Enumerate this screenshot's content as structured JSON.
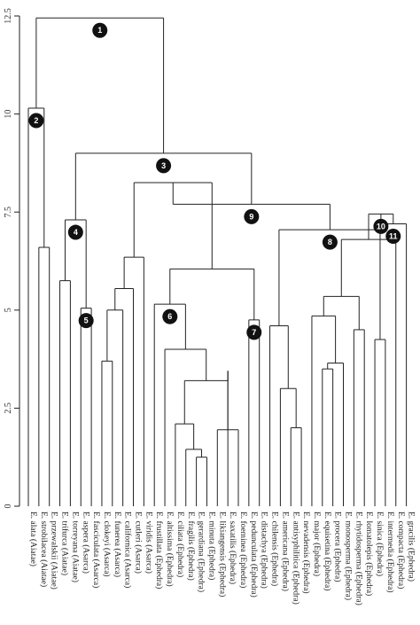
{
  "chart_data": {
    "type": "dendrogram",
    "axis": {
      "ticks": [
        "0",
        "2.5",
        "5",
        "7.5",
        "10",
        "12.5"
      ],
      "ylim": [
        0,
        12.5
      ]
    },
    "nodes": [
      {
        "id": "n0",
        "h": 12.45
      },
      {
        "id": "n1",
        "h": 10.15
      },
      {
        "id": "n2",
        "h": 9.0
      },
      {
        "id": "n3",
        "h": 6.6
      },
      {
        "id": "n4",
        "h": 5.3
      },
      {
        "id": "n5",
        "h": 3.6
      },
      {
        "id": "n6",
        "h": 7.3
      },
      {
        "id": "n7",
        "h": 5.75
      },
      {
        "id": "n8",
        "h": 5.05
      },
      {
        "id": "n9",
        "h": 8.25
      },
      {
        "id": "n10",
        "h": 6.35
      },
      {
        "id": "n11",
        "h": 6.05
      },
      {
        "id": "n12",
        "h": 5.55
      },
      {
        "id": "n13",
        "h": 5.0
      },
      {
        "id": "n14",
        "h": 3.7
      },
      {
        "id": "n15",
        "h": 3.45
      },
      {
        "id": "n16",
        "h": 3.2
      },
      {
        "id": "n17",
        "h": 2.1
      },
      {
        "id": "n18",
        "h": 1.95
      },
      {
        "id": "n19",
        "h": 1.45
      },
      {
        "id": "n20",
        "h": 1.25
      },
      {
        "id": "n21",
        "h": 5.15
      },
      {
        "id": "n22",
        "h": 4.0
      },
      {
        "id": "n23",
        "h": 4.75
      },
      {
        "id": "n24",
        "h": 7.7
      },
      {
        "id": "n25",
        "h": 7.05
      },
      {
        "id": "n26",
        "h": 4.6
      },
      {
        "id": "n27",
        "h": 3.0
      },
      {
        "id": "n28",
        "h": 2.0
      },
      {
        "id": "n29",
        "h": 7.45
      },
      {
        "id": "n30",
        "h": 6.8
      },
      {
        "id": "n31",
        "h": 5.35
      },
      {
        "id": "n32",
        "h": 4.85
      },
      {
        "id": "n33",
        "h": 3.65
      },
      {
        "id": "n34",
        "h": 3.5
      },
      {
        "id": "n35",
        "h": 4.5
      },
      {
        "id": "n36",
        "h": 7.2
      },
      {
        "id": "n37",
        "h": 4.25
      },
      {
        "id": "n38",
        "h": 3.3
      }
    ],
    "edges": [
      [
        "n0",
        "n1"
      ],
      [
        "n0",
        "n2"
      ],
      [
        "n1",
        "n3"
      ],
      [
        "n1",
        "L0"
      ],
      [
        "n3",
        "L1"
      ],
      [
        "n3",
        "L2"
      ],
      [
        "n2",
        "n6"
      ],
      [
        "n2",
        "n24"
      ],
      [
        "n6",
        "n7"
      ],
      [
        "n6",
        "n8"
      ],
      [
        "n7",
        "L3"
      ],
      [
        "n7",
        "L4"
      ],
      [
        "n8",
        "L5"
      ],
      [
        "n8",
        "L6"
      ],
      [
        "n24",
        "n9"
      ],
      [
        "n24",
        "n25"
      ],
      [
        "n9",
        "n10"
      ],
      [
        "n9",
        "n11"
      ],
      [
        "n10",
        "n12"
      ],
      [
        "n10",
        "L11"
      ],
      [
        "n12",
        "n13"
      ],
      [
        "n12",
        "L10"
      ],
      [
        "n13",
        "n14"
      ],
      [
        "n13",
        "L9"
      ],
      [
        "n14",
        "L7"
      ],
      [
        "n14",
        "L8"
      ],
      [
        "n11",
        "n21"
      ],
      [
        "n11",
        "n23"
      ],
      [
        "n21",
        "n22"
      ],
      [
        "n21",
        "L12"
      ],
      [
        "n22",
        "n16"
      ],
      [
        "n22",
        "L13"
      ],
      [
        "n16",
        "n17"
      ],
      [
        "n16",
        "n15"
      ],
      [
        "n17",
        "L14"
      ],
      [
        "n17",
        "n19"
      ],
      [
        "n19",
        "L15"
      ],
      [
        "n19",
        "n20"
      ],
      [
        "n20",
        "L16"
      ],
      [
        "n20",
        "L17"
      ],
      [
        "n15",
        "n18"
      ],
      [
        "n15",
        "L19"
      ],
      [
        "n18",
        "L18"
      ],
      [
        "n18",
        "L20"
      ],
      [
        "n23",
        "L21"
      ],
      [
        "n23",
        "L22"
      ],
      [
        "n25",
        "n26"
      ],
      [
        "n25",
        "n29"
      ],
      [
        "n26",
        "n27"
      ],
      [
        "n26",
        "L23"
      ],
      [
        "n27",
        "L24"
      ],
      [
        "n27",
        "n28"
      ],
      [
        "n28",
        "L25"
      ],
      [
        "n28",
        "L26"
      ],
      [
        "n29",
        "n30"
      ],
      [
        "n29",
        "n36"
      ],
      [
        "n30",
        "n31"
      ],
      [
        "n30",
        "L35"
      ],
      [
        "n31",
        "n32"
      ],
      [
        "n31",
        "n35"
      ],
      [
        "n32",
        "L27"
      ],
      [
        "n32",
        "n33"
      ],
      [
        "n33",
        "n34"
      ],
      [
        "n33",
        "L30"
      ],
      [
        "n34",
        "L28"
      ],
      [
        "n34",
        "L29"
      ],
      [
        "n35",
        "L31"
      ],
      [
        "n35",
        "L32"
      ],
      [
        "n36",
        "n37"
      ],
      [
        "n36",
        "L36"
      ],
      [
        "n37",
        "L33"
      ],
      [
        "n37",
        "L34"
      ]
    ],
    "leaves": [
      {
        "id": "L0",
        "name": "E. alata (Aiatae)"
      },
      {
        "id": "L1",
        "name": "E. strobilacea (Aiatae)"
      },
      {
        "id": "L2",
        "name": "E. przewalskii (Aiatae)"
      },
      {
        "id": "L3",
        "name": "E. trifurca (Aiatae)"
      },
      {
        "id": "L4",
        "name": "E. torreyana (Aiatae)"
      },
      {
        "id": "L5",
        "name": "E. aspera (Asarca)"
      },
      {
        "id": "L6",
        "name": "E. fasciculata (Asarca)"
      },
      {
        "id": "L7",
        "name": "E. clokeyi (Asarca)"
      },
      {
        "id": "L8",
        "name": "E. funerea (Asarca)"
      },
      {
        "id": "L9",
        "name": "E. californica (Asarca)"
      },
      {
        "id": "L10",
        "name": "E. cutleri (Asarca)"
      },
      {
        "id": "L11",
        "name": "E. viridis (Asarca)"
      },
      {
        "id": "L12",
        "name": "E. frustillata (Ephedra)"
      },
      {
        "id": "L13",
        "name": "E. altissima (Ephedra)"
      },
      {
        "id": "L14",
        "name": "E. ciliata (Ephedra)"
      },
      {
        "id": "L15",
        "name": "E. fragilis (Ephedra)"
      },
      {
        "id": "L16",
        "name": "E. gerardiana (Ephedra)"
      },
      {
        "id": "L17",
        "name": "E. minuta (Ephedra)"
      },
      {
        "id": "L18",
        "name": "E. likiangensis (Ephedra)"
      },
      {
        "id": "L19",
        "name": "E. saxatilis (Ephedra)"
      },
      {
        "id": "L20",
        "name": "E. foeminea (Ephedra)"
      },
      {
        "id": "L21",
        "name": "E. pedunculata (Ephedra)"
      },
      {
        "id": "L22",
        "name": "E. distachya (Ephedra)"
      },
      {
        "id": "L23",
        "name": "E. chilensis (Ephedra)"
      },
      {
        "id": "L24",
        "name": "E. americana (Ephedra)"
      },
      {
        "id": "L25",
        "name": "E. antisyphilitica (Ephedra)"
      },
      {
        "id": "L26",
        "name": "E. nevadensis (Ephedra)"
      },
      {
        "id": "L27",
        "name": "E. major (Ephedra)"
      },
      {
        "id": "L28",
        "name": "E. equisetina (Ephedra)"
      },
      {
        "id": "L29",
        "name": "E. procera (Ephedra)"
      },
      {
        "id": "L30",
        "name": "E. monosperma (Ephedra)"
      },
      {
        "id": "L31",
        "name": "E. rhytidosperma (Ephedra)"
      },
      {
        "id": "L32",
        "name": "E. lomatolepis (Ephedra)"
      },
      {
        "id": "L33",
        "name": "E. sinica (Ephedra)"
      },
      {
        "id": "L34",
        "name": "E. intermedia (Ephedra)"
      },
      {
        "id": "L35",
        "name": "E. compacta (Ephedra)"
      },
      {
        "id": "L36",
        "name": "E. gracilis (Ephedra)"
      }
    ],
    "numbered_nodes": [
      {
        "node": "n0",
        "label": "1"
      },
      {
        "node": "n1",
        "label": "2"
      },
      {
        "node": "n2",
        "label": "3"
      },
      {
        "node": "n6",
        "label": "4"
      },
      {
        "node": "n8",
        "label": "5"
      },
      {
        "node": "n21",
        "label": "6"
      },
      {
        "node": "n23",
        "label": "7"
      },
      {
        "node": "n25",
        "label": "8"
      },
      {
        "node": "n24",
        "label": "9"
      },
      {
        "node": "n29",
        "label": "10"
      },
      {
        "node": "n36",
        "label": "11"
      }
    ]
  }
}
